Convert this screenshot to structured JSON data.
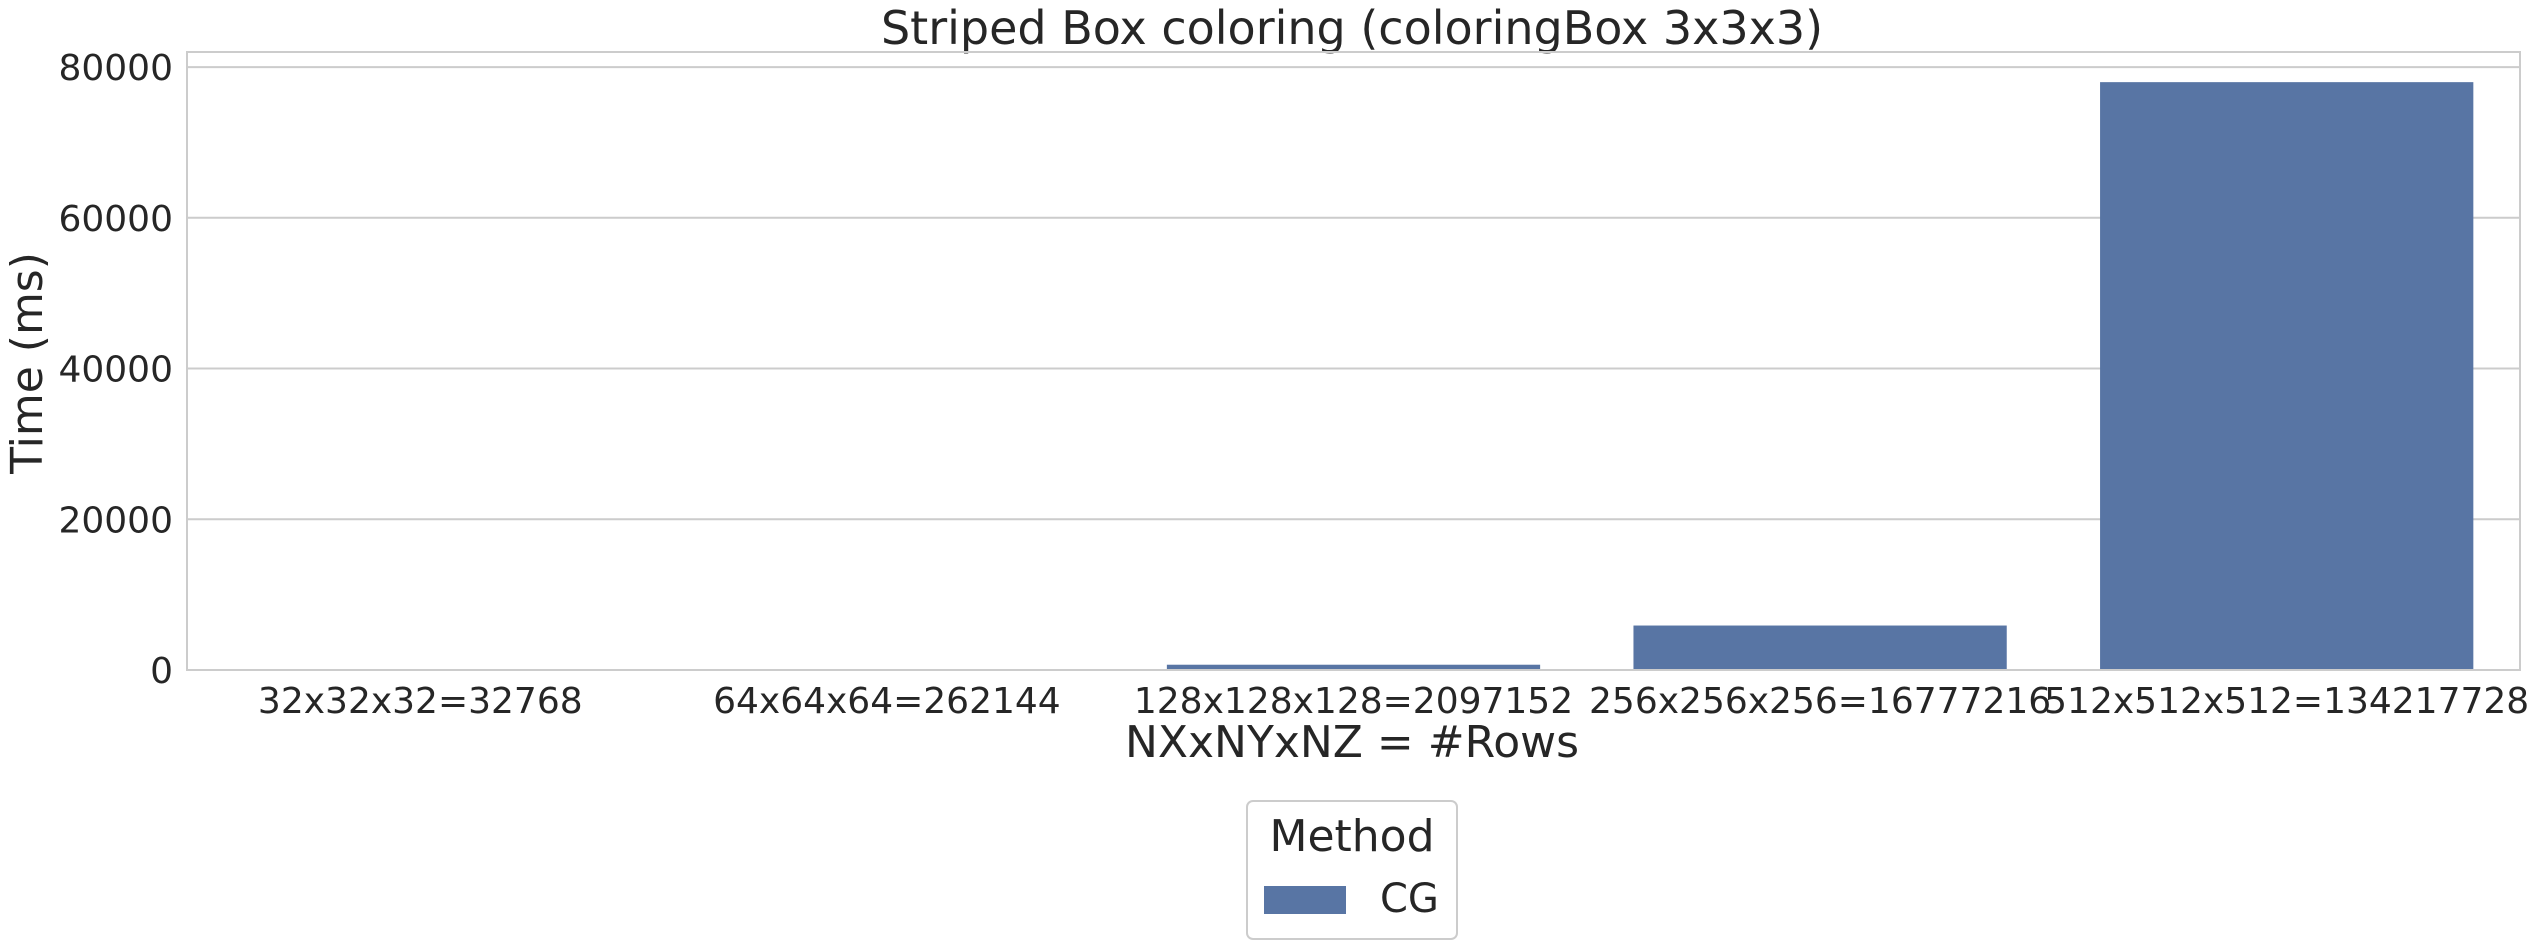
{
  "chart_data": {
    "type": "bar",
    "title": "Striped Box coloring (coloringBox 3x3x3)",
    "xlabel": "NXxNYxNZ = #Rows",
    "ylabel": "Time (ms)",
    "categories": [
      "32x32x32=32768",
      "64x64x64=262144",
      "128x128x128=2097152",
      "256x256x256=16777216",
      "512x512x512=134217728"
    ],
    "series": [
      {
        "name": "CG",
        "color": "#5875a4",
        "values": [
          8,
          70,
          700,
          5900,
          78000
        ]
      }
    ],
    "ylim": [
      0,
      82000
    ],
    "yticks": [
      0,
      20000,
      40000,
      60000,
      80000
    ],
    "ytick_labels": [
      "0",
      "20000",
      "40000",
      "60000",
      "80000"
    ],
    "grid": true,
    "legend": {
      "title": "Method",
      "placement": "bottom-center, outside plot"
    }
  }
}
